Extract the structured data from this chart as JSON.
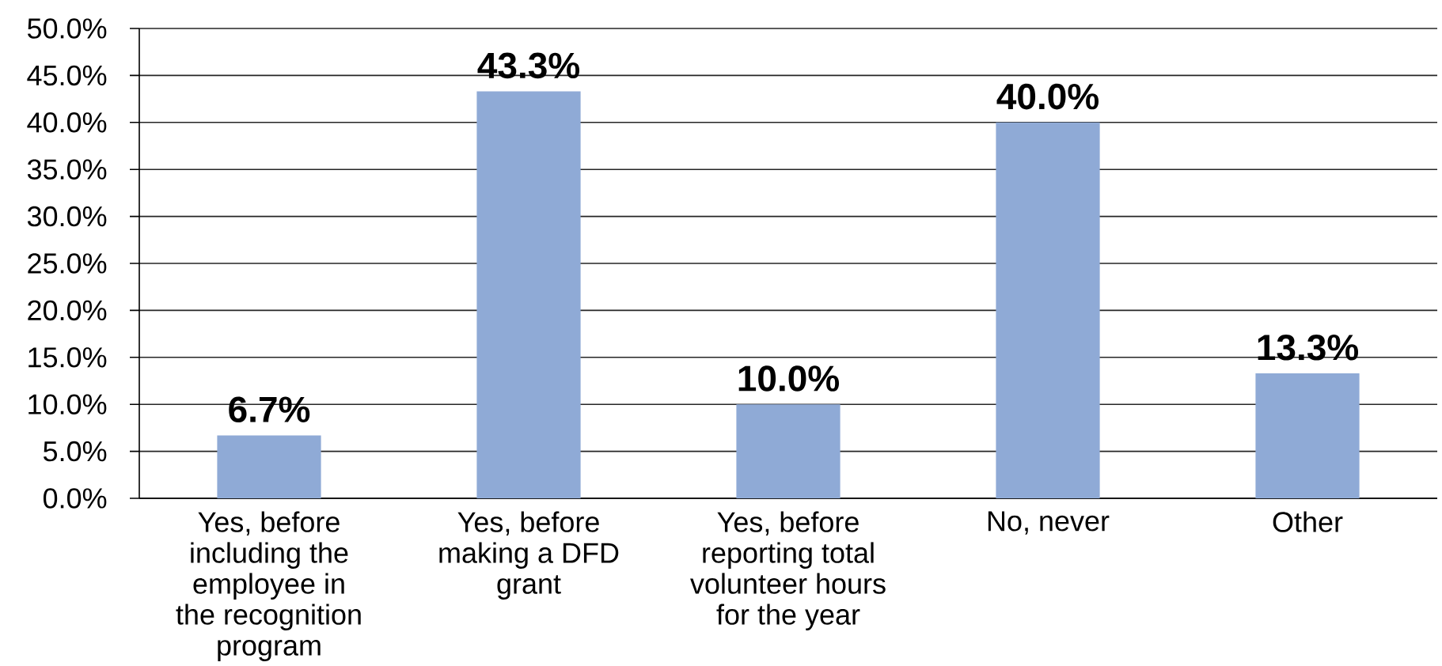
{
  "chart_data": {
    "type": "bar",
    "categories": [
      "Yes, before including the employee in the recognition program",
      "Yes, before making a DFD grant",
      "Yes, before reporting total volunteer hours for the year",
      "No, never",
      "Other"
    ],
    "values": [
      6.7,
      43.3,
      10.0,
      40.0,
      13.3
    ],
    "color": "#8faad6",
    "value_labels": [
      "6.7%",
      "43.3%",
      "10.0%",
      "40.0%",
      "13.3%"
    ],
    "ylim": [
      0,
      50
    ],
    "yticks": [
      {
        "value": 0,
        "label": "0.0%"
      },
      {
        "value": 5,
        "label": "5.0%"
      },
      {
        "value": 10,
        "label": "10.0%"
      },
      {
        "value": 15,
        "label": "15.0%"
      },
      {
        "value": 20,
        "label": "20.0%"
      },
      {
        "value": 25,
        "label": "25.0%"
      },
      {
        "value": 30,
        "label": "30.0%"
      },
      {
        "value": 35,
        "label": "35.0%"
      },
      {
        "value": 40,
        "label": "40.0%"
      },
      {
        "value": 45,
        "label": "45.0%"
      },
      {
        "value": 50,
        "label": "50.0%"
      }
    ],
    "grid": "y"
  }
}
